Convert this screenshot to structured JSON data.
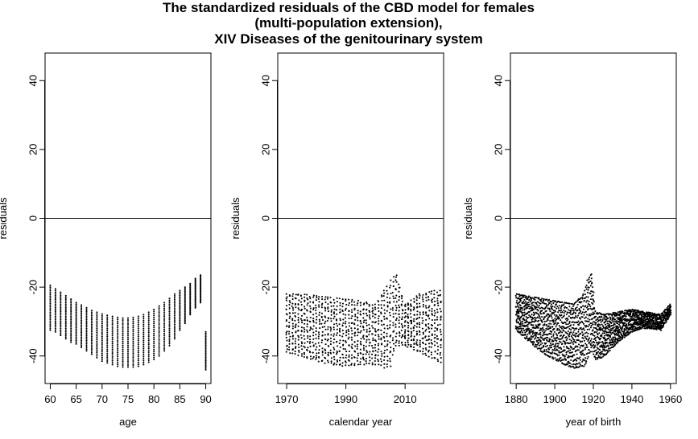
{
  "title": {
    "line1": "The standardized residuals of the CBD model for females",
    "line2": "(multi-population extension),",
    "line3": "XIV Diseases of the genitourinary system"
  },
  "colors": {
    "points": "#000000",
    "zero_line": "#000000",
    "frame": "#000000",
    "background": "#ffffff"
  },
  "chart_data": [
    {
      "type": "scatter",
      "xlabel": "age",
      "ylabel": "residuals",
      "xlim": [
        59,
        91
      ],
      "ylim": [
        -48,
        48
      ],
      "xticks": [
        60,
        65,
        70,
        75,
        80,
        85,
        90
      ],
      "yticks": [
        -40,
        -20,
        0,
        20,
        40
      ],
      "hline": 0,
      "description_series": "upper and lower envelopes of residuals per age (each age column holds ~20 stacked points between min and max)",
      "x": [
        60,
        61,
        62,
        63,
        64,
        65,
        66,
        67,
        68,
        69,
        70,
        71,
        72,
        73,
        74,
        75,
        76,
        77,
        78,
        79,
        80,
        81,
        82,
        83,
        84,
        85,
        86,
        87,
        88,
        89,
        90
      ],
      "upper": [
        -19.5,
        -20.5,
        -21.5,
        -22.5,
        -23.5,
        -24.5,
        -25.2,
        -26.0,
        -26.8,
        -27.3,
        -27.8,
        -28.2,
        -28.5,
        -28.8,
        -29.0,
        -29.0,
        -28.8,
        -28.5,
        -28.0,
        -27.3,
        -26.5,
        -25.5,
        -24.5,
        -23.3,
        -22.0,
        -21.0,
        -20.0,
        -19.0,
        -17.5,
        -16.5,
        -33.0
      ],
      "lower": [
        -32.5,
        -33.0,
        -34.0,
        -35.0,
        -36.0,
        -36.5,
        -37.5,
        -38.5,
        -39.5,
        -40.5,
        -41.5,
        -42.0,
        -42.5,
        -43.0,
        -43.2,
        -43.2,
        -43.2,
        -43.0,
        -42.5,
        -41.8,
        -41.0,
        -40.0,
        -38.5,
        -37.0,
        -35.0,
        -32.5,
        -30.5,
        -28.0,
        -26.0,
        -24.5,
        -44.0
      ]
    },
    {
      "type": "scatter",
      "xlabel": "calendar year",
      "ylabel": "residuals",
      "xlim": [
        1967,
        2023
      ],
      "ylim": [
        -48,
        48
      ],
      "xticks": [
        1970,
        1990,
        2010
      ],
      "yticks": [
        -40,
        -20,
        0,
        20,
        40
      ],
      "hline": 0,
      "description_series": "upper and lower envelopes of residuals per calendar year",
      "x": [
        1970,
        1975,
        1980,
        1985,
        1990,
        1995,
        2000,
        2003,
        2005,
        2007,
        2010,
        2015,
        2020,
        2022
      ],
      "upper": [
        -22.0,
        -22.0,
        -22.5,
        -23.0,
        -23.5,
        -24.0,
        -25.0,
        -21.0,
        -18.0,
        -16.0,
        -25.0,
        -22.0,
        -21.0,
        -21.0
      ],
      "lower": [
        -39.0,
        -40.0,
        -41.5,
        -42.5,
        -43.0,
        -42.5,
        -42.5,
        -43.5,
        -43.0,
        -37.0,
        -37.0,
        -39.0,
        -41.0,
        -42.0
      ]
    },
    {
      "type": "scatter",
      "xlabel": "year of birth",
      "ylabel": "residuals",
      "xlim": [
        1877,
        1963
      ],
      "ylim": [
        -48,
        48
      ],
      "xticks": [
        1880,
        1900,
        1920,
        1940,
        1960
      ],
      "yticks": [
        -40,
        -20,
        0,
        20,
        40
      ],
      "hline": 0,
      "description_series": "upper and lower envelopes of residuals per year of birth",
      "x": [
        1880,
        1885,
        1890,
        1895,
        1900,
        1905,
        1910,
        1915,
        1917,
        1919,
        1921,
        1925,
        1930,
        1935,
        1940,
        1945,
        1950,
        1955,
        1960
      ],
      "upper": [
        -22.0,
        -22.5,
        -23.0,
        -23.5,
        -24.0,
        -24.5,
        -25.0,
        -22.0,
        -18.0,
        -16.0,
        -27.0,
        -28.0,
        -27.5,
        -27.0,
        -26.5,
        -27.0,
        -27.5,
        -28.0,
        -25.0
      ],
      "lower": [
        -32.5,
        -35.0,
        -37.5,
        -39.5,
        -41.0,
        -42.5,
        -43.5,
        -43.0,
        -41.0,
        -38.0,
        -41.0,
        -40.5,
        -37.5,
        -35.0,
        -33.0,
        -32.0,
        -32.0,
        -32.5,
        -28.0
      ]
    }
  ]
}
